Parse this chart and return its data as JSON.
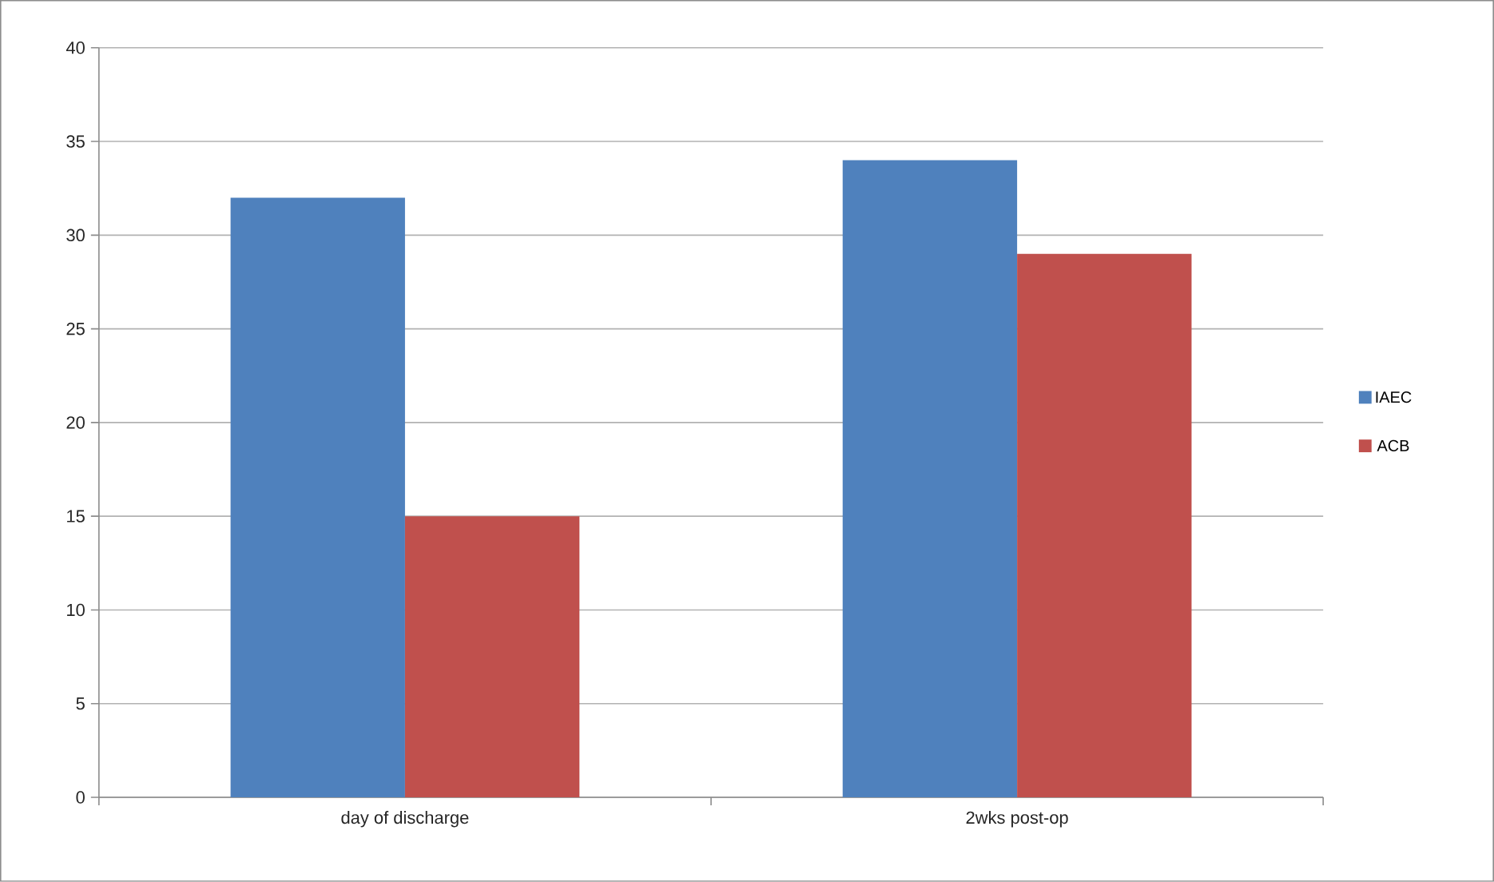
{
  "chart_data": {
    "type": "bar",
    "categories": [
      "day of discharge",
      "2wks post-op"
    ],
    "series": [
      {
        "name": "IAEC",
        "color": "#4f81bd",
        "values": [
          32,
          34
        ]
      },
      {
        "name": "ACB",
        "color": "#c0504d",
        "values": [
          15,
          29
        ]
      }
    ],
    "ylim": [
      0,
      40
    ],
    "yticks": [
      0,
      5,
      10,
      15,
      20,
      25,
      30,
      35,
      40
    ],
    "grid": "y",
    "legend": "right"
  }
}
